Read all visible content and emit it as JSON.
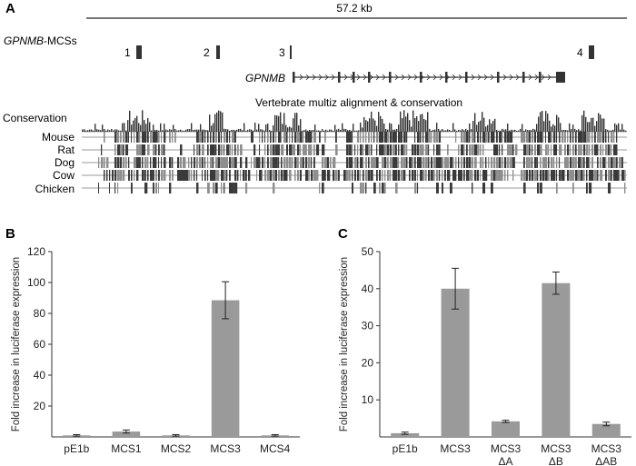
{
  "panel_a": {
    "letter": "A",
    "scale_label": "57.2 kb",
    "mcs_label_gene": "GPNMB",
    "mcs_label_suffix": "-MCSs",
    "mcs": [
      {
        "num": "1"
      },
      {
        "num": "2"
      },
      {
        "num": "3"
      },
      {
        "num": "4"
      }
    ],
    "gene_name": "GPNMB",
    "alignment_title": "Vertebrate multiz alignment & conservation",
    "tracks": [
      "Conservation",
      "Mouse",
      "Rat",
      "Dog",
      "Cow",
      "Chicken"
    ],
    "colors": {
      "dark": "#3a3a3a",
      "light": "#8e8e8e"
    }
  },
  "chart_data": [
    {
      "panel": "B",
      "type": "bar",
      "ylabel": "Fold increase in luciferase expression",
      "ylim": [
        0,
        120
      ],
      "yticks": [
        20,
        40,
        60,
        80,
        100,
        120
      ],
      "categories": [
        "pE1b",
        "MCS1",
        "MCS2",
        "MCS3",
        "MCS4"
      ],
      "values": [
        1.0,
        3.5,
        1.0,
        88.5,
        1.0
      ],
      "errors": [
        0.5,
        1.0,
        0.5,
        12.0,
        0.5
      ],
      "bar_color": "#9a9a9a"
    },
    {
      "panel": "C",
      "type": "bar",
      "ylabel": "Fold increase in luciferase expression",
      "ylim": [
        0,
        50
      ],
      "yticks": [
        10,
        20,
        30,
        40,
        50
      ],
      "categories": [
        [
          "pE1b"
        ],
        [
          "MCS3"
        ],
        [
          "MCS3",
          "ΔA"
        ],
        [
          "MCS3",
          "ΔB"
        ],
        [
          "MCS3",
          "ΔAB"
        ]
      ],
      "values": [
        1.0,
        40.0,
        4.2,
        41.5,
        3.5
      ],
      "errors": [
        0.3,
        5.5,
        0.3,
        3.0,
        0.5
      ],
      "bar_color": "#9a9a9a"
    }
  ]
}
